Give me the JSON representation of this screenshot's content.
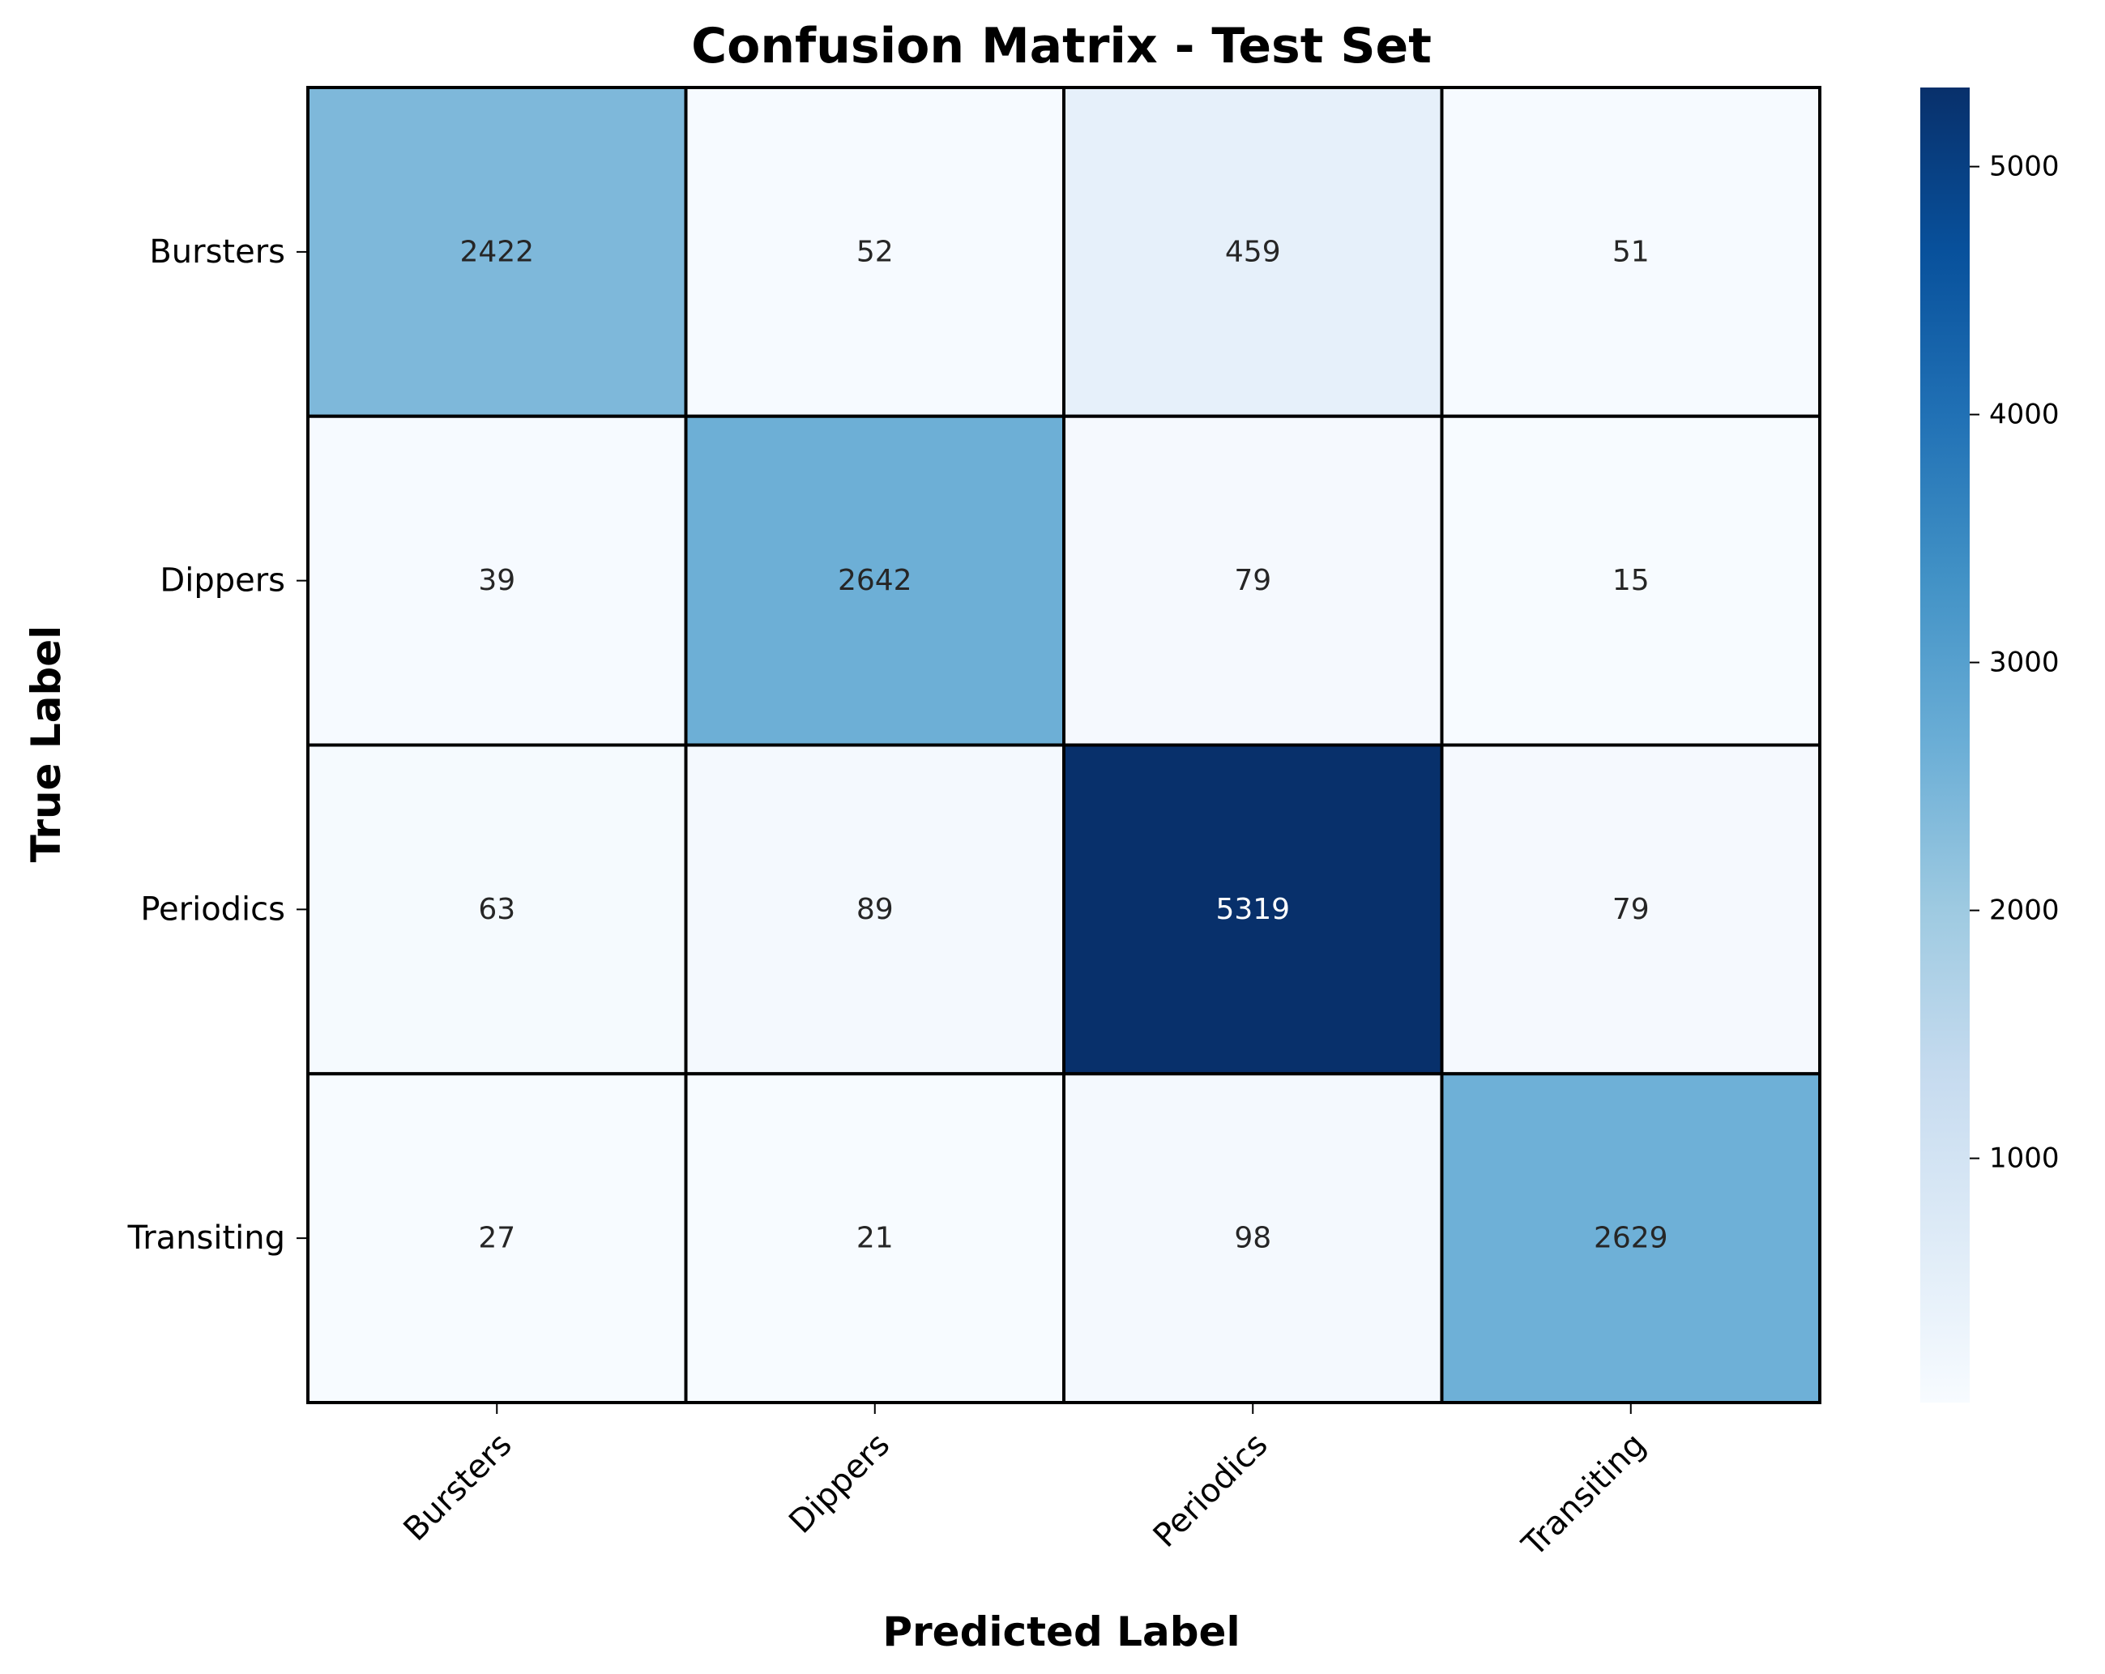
{
  "chart_data": {
    "type": "heatmap",
    "title": "Confusion Matrix - Test Set",
    "xlabel": "Predicted Label",
    "ylabel": "True Label",
    "x_categories": [
      "Bursters",
      "Dippers",
      "Periodics",
      "Transiting"
    ],
    "y_categories": [
      "Bursters",
      "Dippers",
      "Periodics",
      "Transiting"
    ],
    "matrix": [
      [
        2422,
        52,
        459,
        51
      ],
      [
        39,
        2642,
        79,
        15
      ],
      [
        63,
        89,
        5319,
        79
      ],
      [
        27,
        21,
        98,
        2629
      ]
    ],
    "colormap": "Blues",
    "value_range": [
      15,
      5319
    ],
    "colorbar": {
      "ticks": [
        1000,
        2000,
        3000,
        4000,
        5000
      ],
      "tick_labels": [
        "1000",
        "2000",
        "3000",
        "4000",
        "5000"
      ]
    },
    "colors": {
      "cell_border": "#000000",
      "text_dark": "#262626",
      "text_light": "#ffffff",
      "scale": [
        "#f7fbff",
        "#deebf7",
        "#c6dbef",
        "#9ecae1",
        "#6baed6",
        "#4292c6",
        "#2171b5",
        "#08519c",
        "#08306b"
      ]
    }
  }
}
